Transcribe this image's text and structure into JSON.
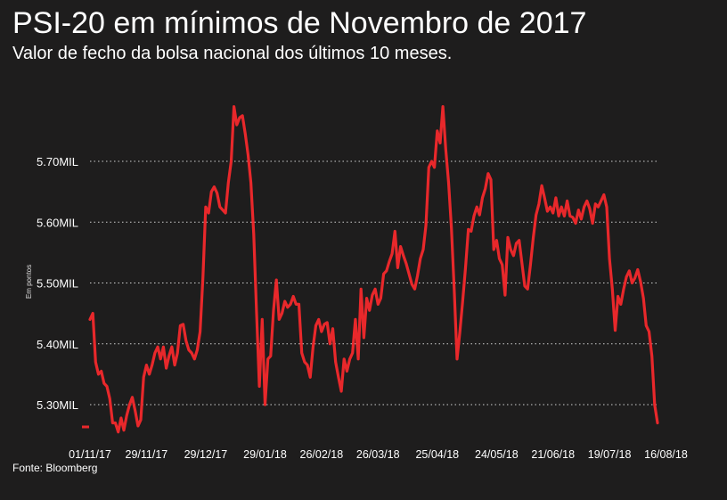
{
  "header": {
    "title": "PSI-20 em mínimos de Novembro de 2017",
    "subtitle": "Valor de fecho da bolsa nacional dos últimos 10 meses."
  },
  "footer": {
    "source": "Fonte: Bloomberg"
  },
  "colors": {
    "background": "#1e1d1d",
    "line": "#e8282b",
    "grid": "#cfcfcf",
    "text": "#ffffff"
  },
  "chart_data": {
    "type": "line",
    "title": "PSI-20 em mínimos de Novembro de 2017",
    "subtitle": "Valor de fecho da bolsa nacional dos últimos 10 meses.",
    "ylabel": "Em pontos",
    "xlabel": "",
    "ylim": [
      5260,
      5780
    ],
    "yticks": [
      5300,
      5400,
      5500,
      5600,
      5700
    ],
    "ytick_labels": [
      "5.30MIL",
      "5.40MIL",
      "5.50MIL",
      "5.60MIL",
      "5.70MIL"
    ],
    "grid": "horizontal-dotted",
    "legend": "none",
    "xtick_labels": [
      "01/11/17",
      "29/11/17",
      "29/12/17",
      "29/01/18",
      "26/02/18",
      "26/03/18",
      "25/04/18",
      "24/05/18",
      "21/06/18",
      "19/07/18",
      "16/08/18"
    ],
    "xtick_index": [
      0,
      20,
      41,
      62,
      82,
      102,
      123,
      144,
      164,
      184,
      204
    ],
    "series": [
      {
        "name": "",
        "values": [
          5440,
          5450,
          5370,
          5350,
          5355,
          5335,
          5330,
          5310,
          5270,
          5270,
          5255,
          5278,
          5258,
          5282,
          5300,
          5312,
          5290,
          5265,
          5275,
          5345,
          5365,
          5350,
          5365,
          5385,
          5395,
          5375,
          5395,
          5360,
          5380,
          5395,
          5365,
          5385,
          5430,
          5432,
          5405,
          5390,
          5385,
          5375,
          5390,
          5420,
          5510,
          5625,
          5615,
          5650,
          5658,
          5648,
          5625,
          5620,
          5615,
          5665,
          5700,
          5790,
          5760,
          5772,
          5775,
          5745,
          5710,
          5665,
          5580,
          5450,
          5330,
          5440,
          5300,
          5375,
          5380,
          5455,
          5505,
          5440,
          5450,
          5470,
          5460,
          5465,
          5478,
          5465,
          5465,
          5385,
          5370,
          5365,
          5345,
          5395,
          5430,
          5440,
          5420,
          5432,
          5435,
          5400,
          5425,
          5370,
          5345,
          5322,
          5375,
          5355,
          5375,
          5385,
          5440,
          5375,
          5490,
          5410,
          5475,
          5455,
          5480,
          5490,
          5465,
          5475,
          5515,
          5520,
          5535,
          5548,
          5585,
          5525,
          5560,
          5545,
          5532,
          5515,
          5498,
          5490,
          5512,
          5540,
          5555,
          5595,
          5690,
          5700,
          5690,
          5750,
          5730,
          5790,
          5720,
          5665,
          5590,
          5490,
          5375,
          5420,
          5470,
          5525,
          5588,
          5585,
          5610,
          5625,
          5612,
          5640,
          5655,
          5680,
          5670,
          5555,
          5570,
          5540,
          5530,
          5480,
          5575,
          5555,
          5545,
          5565,
          5570,
          5532,
          5495,
          5490,
          5530,
          5575,
          5612,
          5630,
          5660,
          5640,
          5618,
          5625,
          5615,
          5640,
          5610,
          5625,
          5610,
          5635,
          5610,
          5608,
          5598,
          5620,
          5605,
          5625,
          5635,
          5622,
          5598,
          5630,
          5625,
          5635,
          5645,
          5625,
          5540,
          5490,
          5422,
          5478,
          5465,
          5490,
          5510,
          5520,
          5500,
          5508,
          5522,
          5502,
          5475,
          5430,
          5420,
          5380,
          5300,
          5270
        ]
      }
    ]
  }
}
